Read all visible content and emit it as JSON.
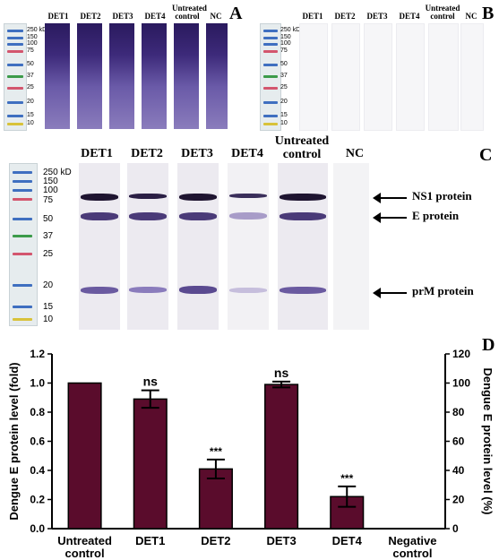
{
  "panels": {
    "A": {
      "letter": "A",
      "lanes": [
        "DET1",
        "DET2",
        "DET3",
        "DET4",
        "Untreated control",
        "NC"
      ],
      "ladder": [
        "250 kD",
        "150",
        "100",
        "75",
        "50",
        "37",
        "25",
        "20",
        "15",
        "10"
      ]
    },
    "B": {
      "letter": "B",
      "lanes": [
        "DET1",
        "DET2",
        "DET3",
        "DET4",
        "Untreated control",
        "NC"
      ],
      "ladder": [
        "250 kD",
        "150",
        "100",
        "75",
        "50",
        "37",
        "25",
        "20",
        "15",
        "10"
      ]
    },
    "C": {
      "letter": "C",
      "lanes": [
        "DET1",
        "DET2",
        "DET3",
        "DET4",
        "Untreated control",
        "NC"
      ],
      "ladder": [
        "250 kD",
        "150",
        "100",
        "75",
        "50",
        "37",
        "25",
        "20",
        "15",
        "10"
      ],
      "proteins": [
        "NS1 protein",
        "E protein",
        "prM protein"
      ]
    },
    "D": {
      "letter": "D"
    }
  },
  "colors": {
    "bar": "#5a0c2c",
    "blot": "#3a2a66",
    "stain": "#5a4aa0"
  },
  "chart_data": {
    "type": "bar",
    "categories": [
      "Untreated control",
      "DET1",
      "DET2",
      "DET3",
      "DET4",
      "Negative control"
    ],
    "values": [
      1.0,
      0.89,
      0.41,
      0.99,
      0.22,
      0.0
    ],
    "errors": [
      0.0,
      0.06,
      0.065,
      0.02,
      0.07,
      0.0
    ],
    "significance": [
      "",
      "ns",
      "***",
      "ns",
      "***",
      ""
    ],
    "ylabel": "Dengue E protein level (fold)",
    "ylim": [
      0,
      1.2
    ],
    "yticks": [
      "0.0",
      "0.2",
      "0.4",
      "0.6",
      "0.8",
      "1.0",
      "1.2"
    ],
    "y2label": "Dengue E protein level (%)",
    "y2lim": [
      0,
      120
    ],
    "y2ticks": [
      "0",
      "20",
      "40",
      "60",
      "80",
      "100",
      "120"
    ]
  }
}
